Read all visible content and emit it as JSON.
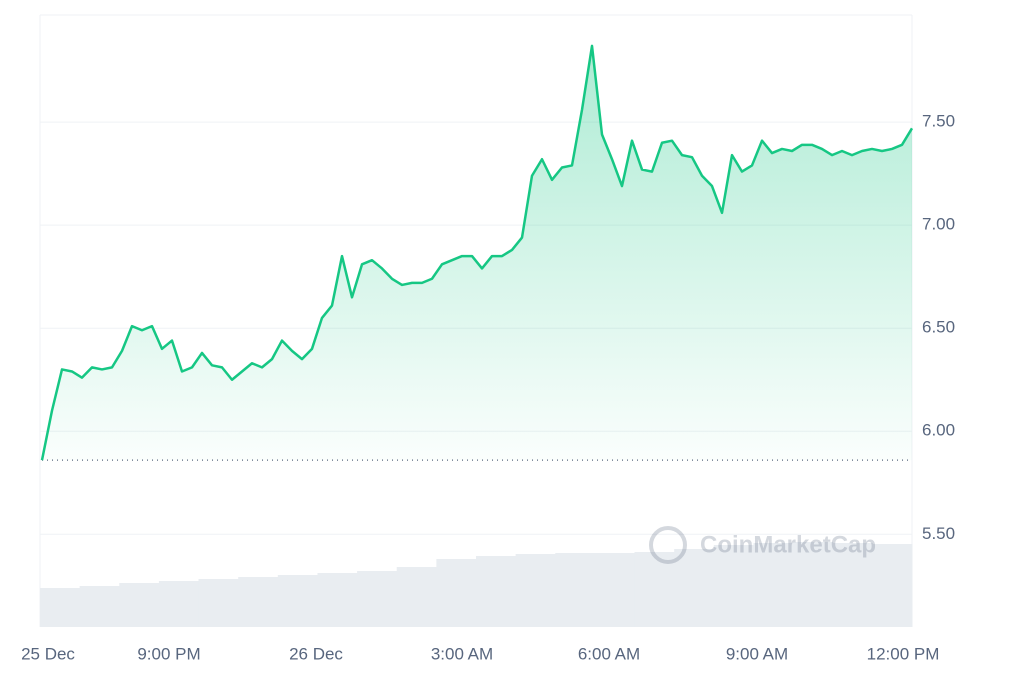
{
  "chart_data": {
    "type": "line",
    "watermark": "CoinMarketCap",
    "color": "#16c784",
    "values": [
      5.86,
      6.1,
      6.3,
      6.29,
      6.26,
      6.31,
      6.3,
      6.31,
      6.39,
      6.51,
      6.49,
      6.51,
      6.4,
      6.44,
      6.29,
      6.31,
      6.38,
      6.32,
      6.31,
      6.25,
      6.29,
      6.33,
      6.31,
      6.35,
      6.44,
      6.39,
      6.35,
      6.4,
      6.55,
      6.61,
      6.85,
      6.65,
      6.81,
      6.83,
      6.79,
      6.74,
      6.71,
      6.72,
      6.72,
      6.74,
      6.81,
      6.83,
      6.85,
      6.85,
      6.79,
      6.85,
      6.85,
      6.88,
      6.94,
      7.24,
      7.32,
      7.22,
      7.28,
      7.29,
      7.56,
      7.87,
      7.44,
      7.32,
      7.19,
      7.41,
      7.27,
      7.26,
      7.4,
      7.41,
      7.34,
      7.33,
      7.24,
      7.19,
      7.06,
      7.34,
      7.26,
      7.29,
      7.41,
      7.35,
      7.37,
      7.36,
      7.39,
      7.39,
      7.37,
      7.34,
      7.36,
      7.34,
      7.36,
      7.37,
      7.36,
      7.37,
      7.39,
      7.47
    ],
    "volume_values": [
      39,
      41,
      44,
      46,
      48,
      50,
      52,
      54,
      56,
      60,
      68,
      71,
      73,
      74,
      74,
      75,
      78,
      82,
      84,
      85,
      84,
      83
    ],
    "volume_color": "#e9edf1",
    "xlim": [
      0,
      87
    ],
    "xticks": [
      {
        "value": 0.6,
        "label": "25 Dec"
      },
      {
        "value": 12.7,
        "label": "9:00 PM"
      },
      {
        "value": 27.4,
        "label": "26 Dec"
      },
      {
        "value": 42,
        "label": "3:00 AM"
      },
      {
        "value": 56.7,
        "label": "6:00 AM"
      },
      {
        "value": 71.5,
        "label": "9:00 AM"
      },
      {
        "value": 86.1,
        "label": "12:00 PM"
      }
    ],
    "ylim": [
      5.05,
      8.02
    ],
    "yticks": [
      {
        "value": 5.5,
        "label": "5.50"
      },
      {
        "value": 6,
        "label": "6.00"
      },
      {
        "value": 6.5,
        "label": "6.50"
      },
      {
        "value": 7,
        "label": "7.00"
      },
      {
        "value": 7.5,
        "label": "7.50"
      }
    ],
    "grid": true
  }
}
